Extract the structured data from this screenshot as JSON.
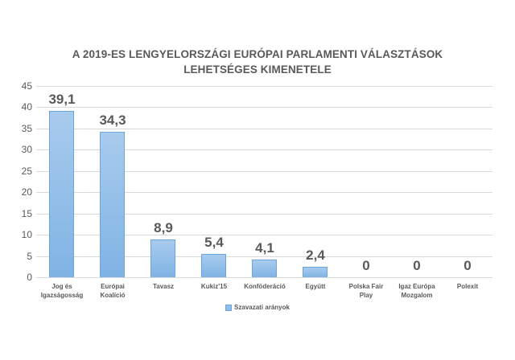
{
  "title": {
    "line1": "A 2019-ES LENGYELORSZÁGI EURÓPAI PARLAMENTI VÁLASZTÁSOK",
    "line2": "LEHETSÉGES KIMENETELE"
  },
  "legend": {
    "label": "Szavazati arányok",
    "color": "#8fbde9"
  },
  "y_ticks": [
    "0",
    "5",
    "10",
    "15",
    "20",
    "25",
    "30",
    "35",
    "40",
    "45"
  ],
  "bars": [
    {
      "label_l1": "Jog és",
      "label_l2": "Igazságosság",
      "value": 39.1,
      "value_label": "39,1"
    },
    {
      "label_l1": "Európai",
      "label_l2": "Koalíció",
      "value": 34.3,
      "value_label": "34,3"
    },
    {
      "label_l1": "Tavasz",
      "label_l2": "",
      "value": 8.9,
      "value_label": "8,9"
    },
    {
      "label_l1": "Kukiz'15",
      "label_l2": "",
      "value": 5.4,
      "value_label": "5,4"
    },
    {
      "label_l1": "Konföderáció",
      "label_l2": "",
      "value": 4.1,
      "value_label": "4,1"
    },
    {
      "label_l1": "Együtt",
      "label_l2": "",
      "value": 2.4,
      "value_label": "2,4"
    },
    {
      "label_l1": "Polska Fair",
      "label_l2": "Play",
      "value": 0,
      "value_label": "0"
    },
    {
      "label_l1": "Igaz Európa",
      "label_l2": "Mozgalom",
      "value": 0,
      "value_label": "0"
    },
    {
      "label_l1": "Polexit",
      "label_l2": "",
      "value": 0,
      "value_label": "0"
    }
  ],
  "chart_data": {
    "type": "bar",
    "title": "A 2019-ES LENGYELORSZÁGI EURÓPAI PARLAMENTI VÁLASZTÁSOK LEHETSÉGES KIMENETELE",
    "categories": [
      "Jog és Igazságosság",
      "Európai Koalíció",
      "Tavasz",
      "Kukiz'15",
      "Konföderáció",
      "Együtt",
      "Polska Fair Play",
      "Igaz Európa Mozgalom",
      "Polexit"
    ],
    "series": [
      {
        "name": "Szavazati arányok",
        "values": [
          39.1,
          34.3,
          8.9,
          5.4,
          4.1,
          2.4,
          0,
          0,
          0
        ],
        "color": "#8fbde9"
      }
    ],
    "data_labels": [
      "39,1",
      "34,3",
      "8,9",
      "5,4",
      "4,1",
      "2,4",
      "0",
      "0",
      "0"
    ],
    "xlabel": "",
    "ylabel": "",
    "ylim": [
      0,
      45
    ],
    "yticks": [
      0,
      5,
      10,
      15,
      20,
      25,
      30,
      35,
      40,
      45
    ],
    "grid": true,
    "legend_position": "bottom"
  }
}
